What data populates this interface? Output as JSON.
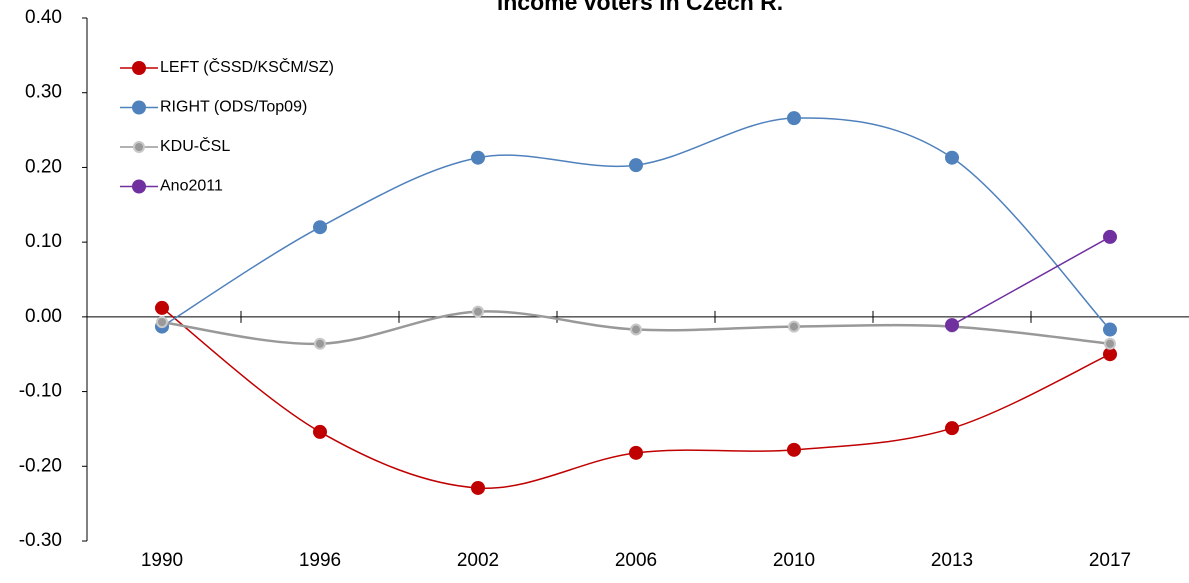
{
  "chart_data": {
    "type": "line",
    "title": "income voters in Czech R.",
    "categories": [
      "1990",
      "1996",
      "2002",
      "2006",
      "2010",
      "2013",
      "2017"
    ],
    "series": [
      {
        "name": "LEFT (ČSSD/KSČM/SZ)",
        "color": "#c00000",
        "smooth": true,
        "values": [
          0.012,
          -0.154,
          -0.229,
          -0.182,
          -0.178,
          -0.149,
          -0.05
        ]
      },
      {
        "name": "RIGHT  (ODS/Top09)",
        "color": "#4f81bd",
        "smooth": true,
        "values": [
          -0.013,
          0.12,
          0.213,
          0.203,
          0.266,
          0.213,
          -0.017
        ]
      },
      {
        "name": "KDU-ČSL",
        "color": "#999999",
        "smooth": true,
        "values": [
          -0.007,
          -0.036,
          0.007,
          -0.017,
          -0.013,
          -0.013,
          -0.036
        ]
      },
      {
        "name": "Ano2011",
        "color": "#7030a0",
        "smooth": false,
        "values": [
          null,
          null,
          null,
          null,
          null,
          -0.011,
          0.107
        ]
      }
    ],
    "ylim": [
      -0.3,
      0.4
    ],
    "yticks": [
      {
        "value": -0.3,
        "label": "-0.30"
      },
      {
        "value": -0.2,
        "label": "-0.20"
      },
      {
        "value": -0.1,
        "label": "-0.10"
      },
      {
        "value": 0,
        "label": "0.00"
      },
      {
        "value": 0.1,
        "label": "0.10"
      },
      {
        "value": 0.2,
        "label": "0.20"
      },
      {
        "value": 0.3,
        "label": "0.30"
      },
      {
        "value": 0.4,
        "label": "0.40"
      }
    ],
    "grid": false,
    "legend": "top-left"
  }
}
